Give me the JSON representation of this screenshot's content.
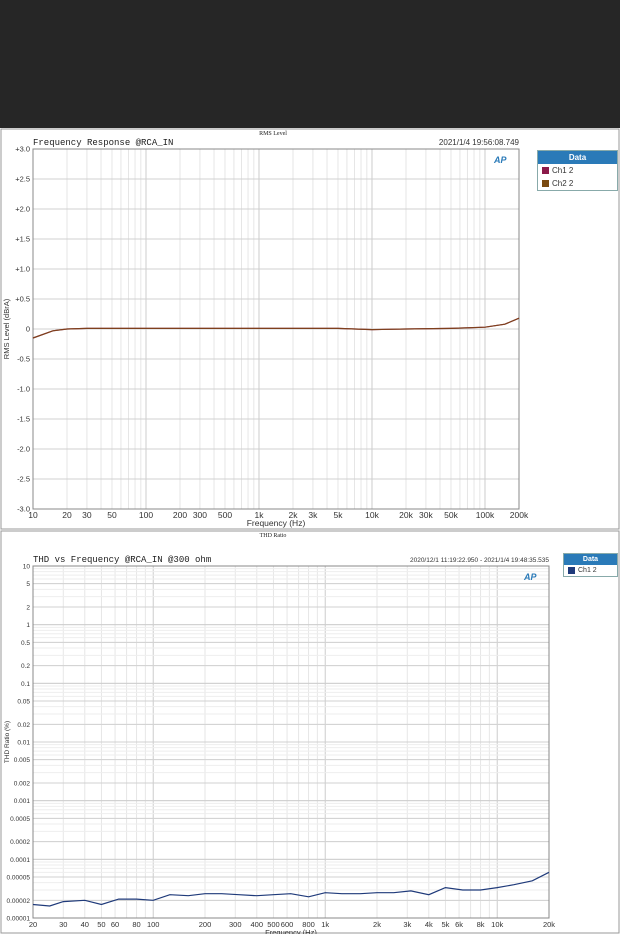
{
  "chart_data": [
    {
      "type": "line",
      "header": "RMS Level",
      "title": "Frequency Response @RCA_IN",
      "timestamp": "2021/1/4 19:56:08.749",
      "xlabel": "Frequency (Hz)",
      "ylabel": "RMS Level (dBrA)",
      "xscale": "log",
      "xlim": [
        10,
        200000
      ],
      "ylim": [
        -3.0,
        3.0
      ],
      "grid": true,
      "legend_placement": "right",
      "legend_title": "Data",
      "xticks": [
        10,
        20,
        30,
        50,
        100,
        200,
        300,
        500,
        1000,
        2000,
        3000,
        5000,
        10000,
        20000,
        30000,
        50000,
        100000,
        200000
      ],
      "xtick_labels": [
        "10",
        "20",
        "30",
        "50",
        "100",
        "200",
        "300",
        "500",
        "1k",
        "2k",
        "3k",
        "5k",
        "10k",
        "20k",
        "30k",
        "50k",
        "100k",
        "200k"
      ],
      "yticks": [
        3,
        2.5,
        2,
        1.5,
        1,
        0.5,
        0,
        -0.5,
        -1,
        -1.5,
        -2,
        -2.5,
        -3
      ],
      "ytick_labels": [
        "+3.0",
        "+2.5",
        "+2.0",
        "+1.5",
        "+1.0",
        "+0.5",
        "0",
        "-0.5",
        "-1.0",
        "-1.5",
        "-2.0",
        "-2.5",
        "-3.0"
      ],
      "series": [
        {
          "name": "Ch1 2",
          "color": "#8b1a4a",
          "x": [
            10,
            15,
            20,
            30,
            50,
            100,
            1000,
            5000,
            10000,
            20000,
            50000,
            100000,
            150000,
            200000
          ],
          "y": [
            -0.15,
            -0.03,
            0,
            0.01,
            0.01,
            0.01,
            0.01,
            0.01,
            -0.01,
            0,
            0.01,
            0.03,
            0.08,
            0.18
          ]
        },
        {
          "name": "Ch2 2",
          "color": "#7a4a10",
          "x": [
            10,
            15,
            20,
            30,
            50,
            100,
            1000,
            5000,
            10000,
            20000,
            50000,
            100000,
            150000,
            200000
          ],
          "y": [
            -0.15,
            -0.03,
            0,
            0.01,
            0.01,
            0.01,
            0.01,
            0.01,
            -0.01,
            0,
            0.01,
            0.03,
            0.08,
            0.18
          ]
        }
      ]
    },
    {
      "type": "line",
      "header": "THD Ratio",
      "title": "THD vs Frequency @RCA_IN @300 ohm",
      "timestamp": "2020/12/1 11:19:22.950 - 2021/1/4 19:48:35.535",
      "xlabel": "Frequency (Hz)",
      "ylabel": "THD Ratio (%)",
      "xscale": "log",
      "yscale": "log",
      "xlim": [
        20,
        20000
      ],
      "ylim": [
        1e-05,
        10
      ],
      "grid": true,
      "legend_placement": "right",
      "legend_title": "Data",
      "xticks": [
        20,
        30,
        40,
        50,
        60,
        80,
        100,
        200,
        300,
        400,
        500,
        600,
        800,
        1000,
        2000,
        3000,
        4000,
        5000,
        6000,
        8000,
        10000,
        20000
      ],
      "xtick_labels": [
        "20",
        "30",
        "40",
        "50",
        "60",
        "80",
        "100",
        "200",
        "300",
        "400",
        "500",
        "600",
        "800",
        "1k",
        "2k",
        "3k",
        "4k",
        "5k",
        "6k",
        "8k",
        "10k",
        "20k"
      ],
      "yticks": [
        10,
        5,
        2,
        1,
        0.5,
        0.2,
        0.1,
        0.05,
        0.02,
        0.01,
        0.005,
        0.002,
        0.001,
        0.0005,
        0.0002,
        0.0001,
        5e-05,
        2e-05,
        1e-05
      ],
      "ytick_labels": [
        "10",
        "5",
        "2",
        "1",
        "0.5",
        "0.2",
        "0.1",
        "0.05",
        "0.02",
        "0.01",
        "0.005",
        "0.002",
        "0.001",
        "0.0005",
        "0.0002",
        "0.0001",
        "0.00005",
        "0.00002",
        "0.00001"
      ],
      "series": [
        {
          "name": "Ch1 2",
          "color": "#1f3a7a",
          "x": [
            20,
            25,
            30,
            40,
            50,
            63,
            80,
            100,
            125,
            160,
            200,
            250,
            315,
            400,
            500,
            630,
            800,
            1000,
            1250,
            1600,
            2000,
            2500,
            3150,
            4000,
            5000,
            6300,
            8000,
            10000,
            12500,
            16000,
            20000
          ],
          "y": [
            1.7e-05,
            1.6e-05,
            1.9e-05,
            2e-05,
            1.7e-05,
            2.1e-05,
            2.1e-05,
            2e-05,
            2.5e-05,
            2.4e-05,
            2.6e-05,
            2.6e-05,
            2.5e-05,
            2.4e-05,
            2.5e-05,
            2.6e-05,
            2.3e-05,
            2.7e-05,
            2.6e-05,
            2.6e-05,
            2.7e-05,
            2.7e-05,
            2.9e-05,
            2.5e-05,
            3.3e-05,
            3e-05,
            3e-05,
            3.3e-05,
            3.7e-05,
            4.3e-05,
            6e-05
          ]
        }
      ]
    }
  ]
}
